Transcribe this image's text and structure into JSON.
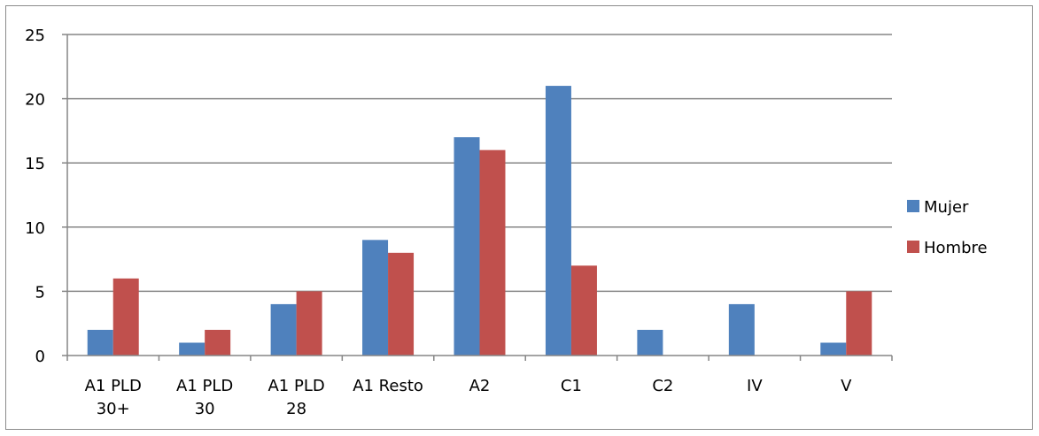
{
  "chart_data": {
    "type": "bar",
    "categories": [
      [
        "A1 PLD",
        "30+"
      ],
      [
        "A1 PLD",
        "30"
      ],
      [
        "A1 PLD",
        "28"
      ],
      [
        "A1 Resto"
      ],
      [
        "A2"
      ],
      [
        "C1"
      ],
      [
        "C2"
      ],
      [
        "IV"
      ],
      [
        "V"
      ]
    ],
    "series": [
      {
        "name": "Mujer",
        "color": "#4f81bd",
        "values": [
          2,
          1,
          4,
          9,
          17,
          21,
          2,
          4,
          1
        ]
      },
      {
        "name": "Hombre",
        "color": "#c0504d",
        "values": [
          6,
          2,
          5,
          8,
          16,
          7,
          0,
          0,
          5
        ]
      }
    ],
    "ylim": [
      0,
      25
    ],
    "yticks": [
      0,
      5,
      10,
      15,
      20,
      25
    ],
    "grid": true,
    "legend_position": "right"
  }
}
